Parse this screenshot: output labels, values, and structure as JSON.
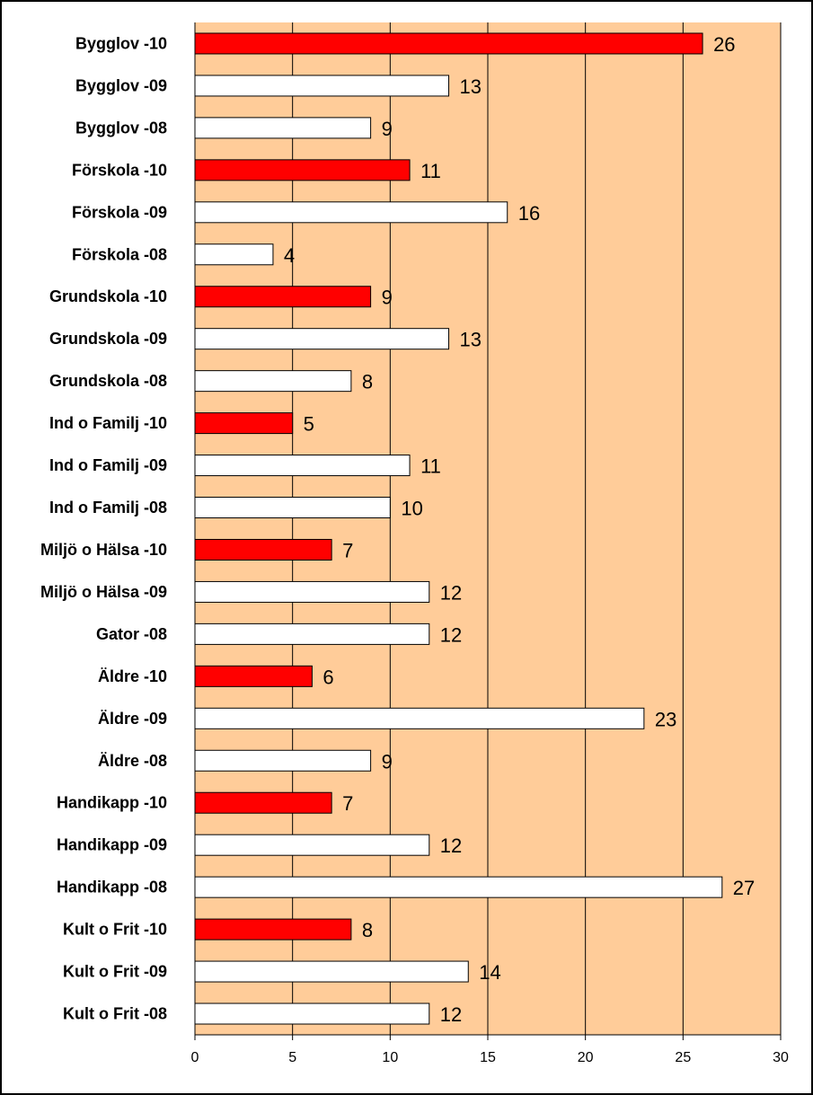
{
  "colors": {
    "plot_background": "#FFCC99",
    "highlight_bar": "#FF0000",
    "normal_bar": "#FFFFFF",
    "outline": "#000000"
  },
  "chart_data": {
    "type": "bar",
    "orientation": "horizontal",
    "title": "",
    "xlabel": "",
    "ylabel": "",
    "xlim": [
      0,
      30
    ],
    "x_ticks": [
      0,
      5,
      10,
      15,
      20,
      25,
      30
    ],
    "grid": "vertical major gridlines",
    "legend": "none",
    "data_labels": true,
    "categories": [
      "Bygglov -10",
      "Bygglov -09",
      "Bygglov -08",
      "Förskola -10",
      "Förskola -09",
      "Förskola -08",
      "Grundskola -10",
      "Grundskola -09",
      "Grundskola -08",
      "Ind o Familj -10",
      "Ind o Familj -09",
      "Ind o Familj -08",
      "Miljö o Hälsa -10",
      "Miljö o Hälsa -09",
      "Gator -08",
      "Äldre -10",
      "Äldre -09",
      "Äldre -08",
      "Handikapp -10",
      "Handikapp -09",
      "Handikapp -08",
      "Kult o Frit -10",
      "Kult o Frit -09",
      "Kult o Frit -08"
    ],
    "values": [
      26,
      13,
      9,
      11,
      16,
      4,
      9,
      13,
      8,
      5,
      11,
      10,
      7,
      12,
      12,
      6,
      23,
      9,
      7,
      12,
      27,
      8,
      14,
      12
    ],
    "highlighted": [
      true,
      false,
      false,
      true,
      false,
      false,
      true,
      false,
      false,
      true,
      false,
      false,
      true,
      false,
      false,
      true,
      false,
      false,
      true,
      false,
      false,
      true,
      false,
      false
    ]
  }
}
